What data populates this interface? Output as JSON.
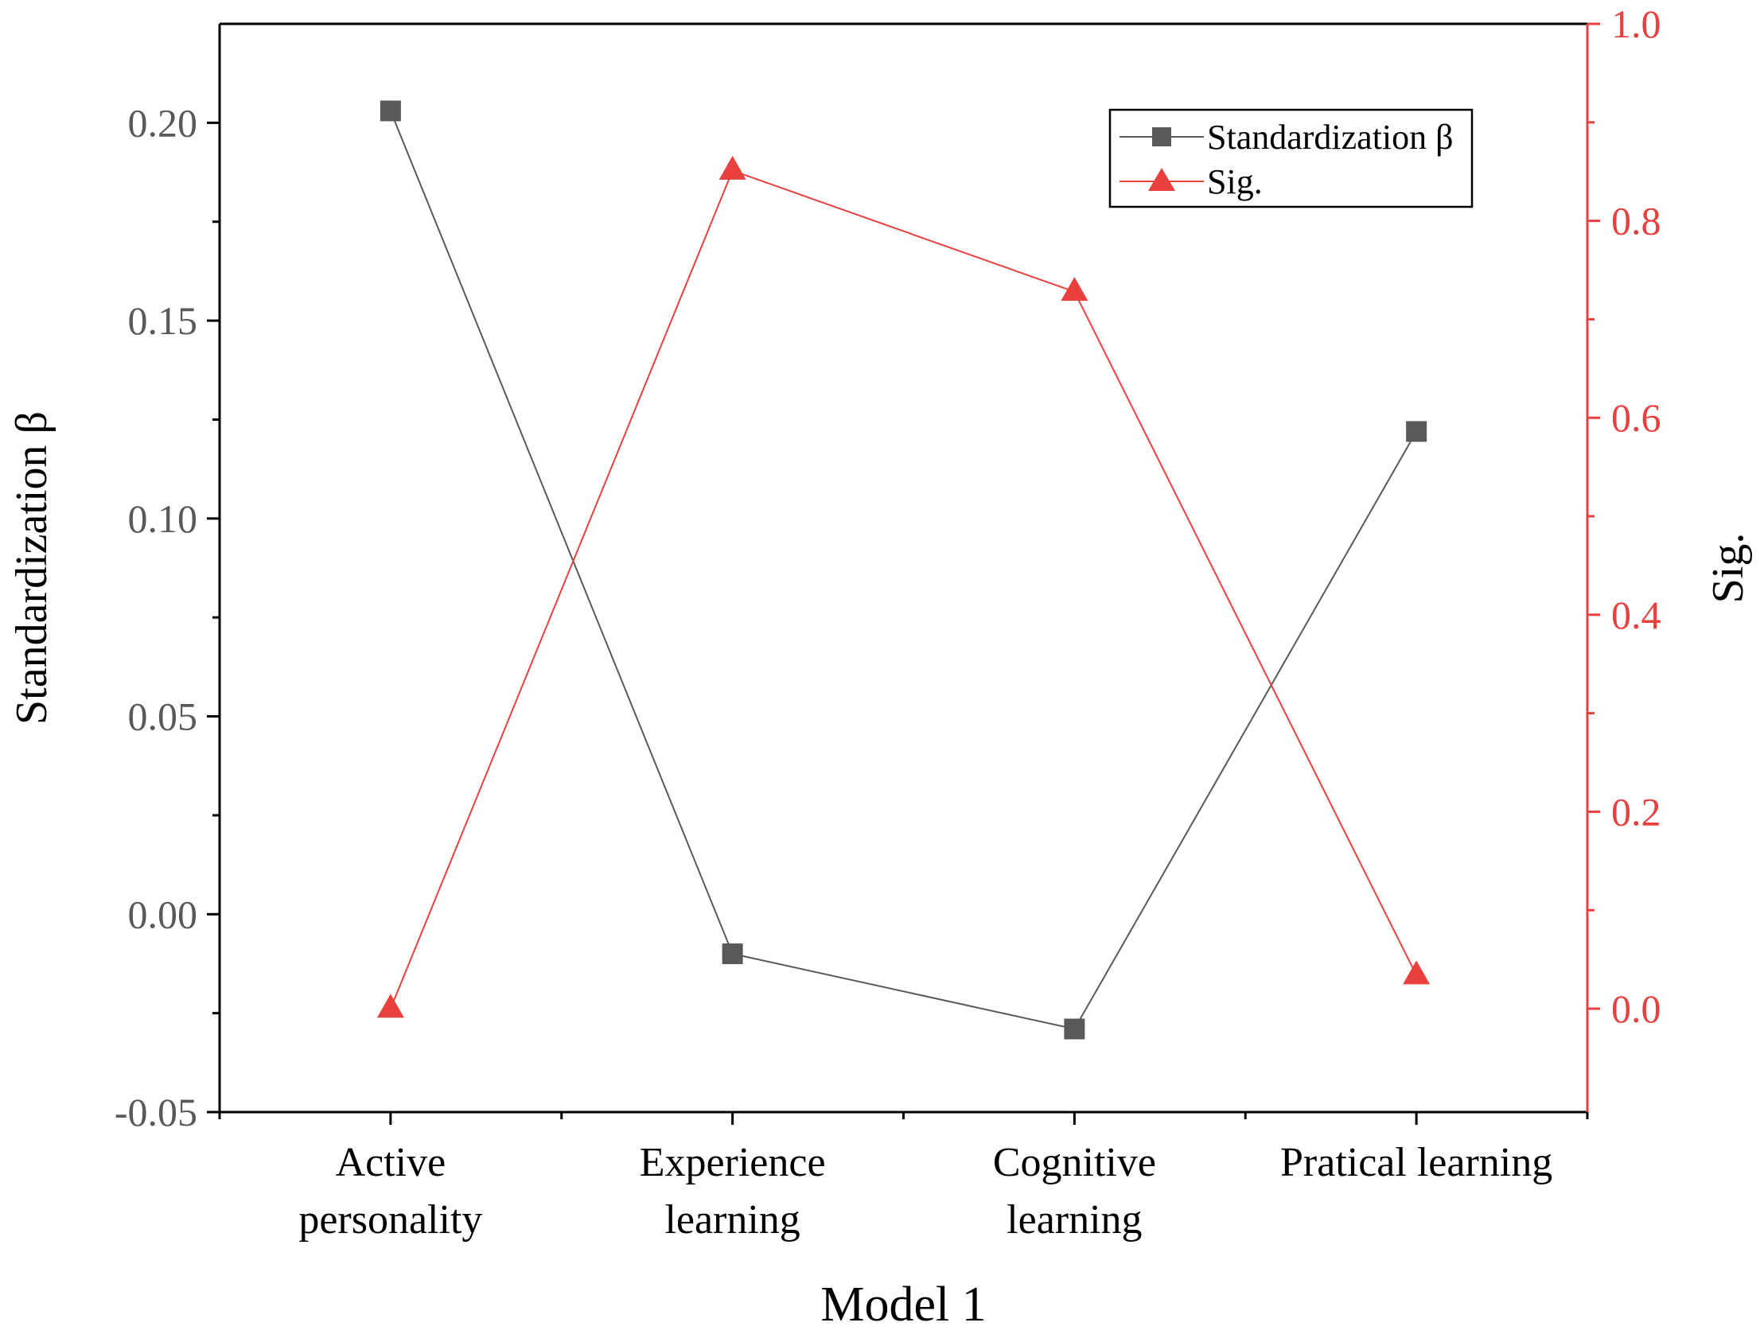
{
  "chart_data": {
    "type": "line",
    "xlabel": "Model 1",
    "categories": [
      [
        "Active",
        "personality"
      ],
      [
        "Experience",
        "learning"
      ],
      [
        "Cognitive",
        "learning"
      ],
      [
        "Pratical learning"
      ]
    ],
    "left_axis": {
      "label": "Standardization β",
      "ylim": [
        -0.05,
        0.225
      ],
      "ticks": [
        "-0.05",
        "0.00",
        "0.05",
        "0.10",
        "0.15",
        "0.20"
      ],
      "tick_values": [
        -0.05,
        0.0,
        0.05,
        0.1,
        0.15,
        0.2
      ],
      "minor_step": 0.025,
      "color": "#595959"
    },
    "right_axis": {
      "label": "Sig.",
      "ylim": [
        -0.105,
        1.0
      ],
      "ticks": [
        "0.0",
        "0.2",
        "0.4",
        "0.6",
        "0.8",
        "1.0"
      ],
      "tick_values": [
        0.0,
        0.2,
        0.4,
        0.6,
        0.8,
        1.0
      ],
      "minor_step": 0.1,
      "color": "#e8403f"
    },
    "series": [
      {
        "name": "Standardization β",
        "axis": "left",
        "marker": "square",
        "color": "#595959",
        "values": [
          0.203,
          -0.01,
          -0.029,
          0.122
        ]
      },
      {
        "name": "Sig.",
        "axis": "right",
        "marker": "triangle",
        "color": "#e8403f",
        "values": [
          0.0,
          0.851,
          0.728,
          0.034
        ]
      }
    ],
    "legend": {
      "position": "top-right"
    },
    "grid": false
  }
}
